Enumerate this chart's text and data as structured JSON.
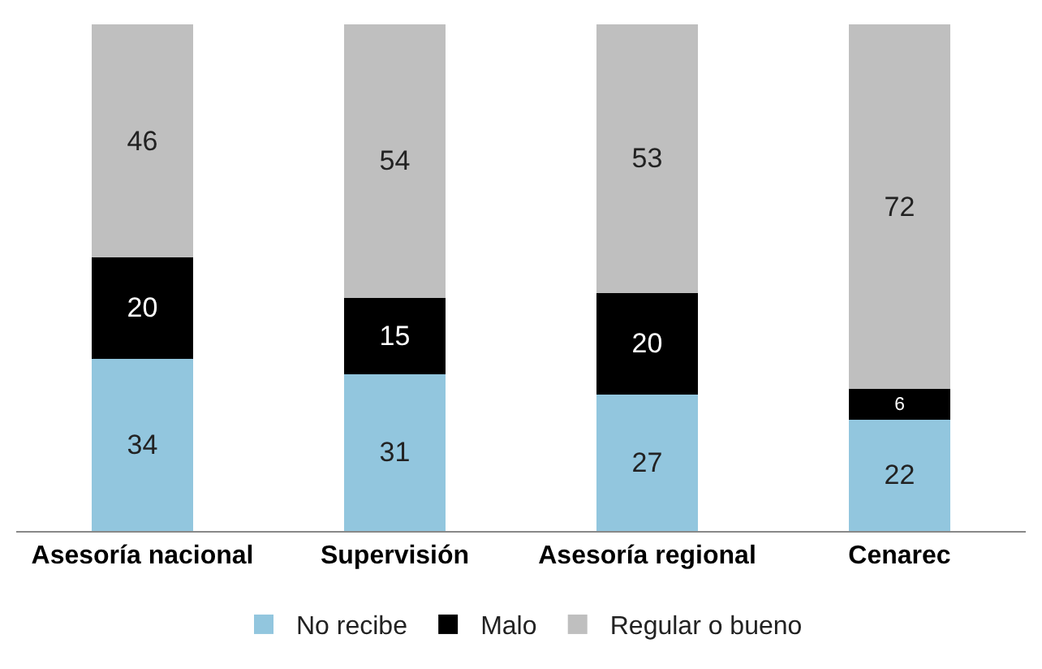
{
  "chart_data": {
    "type": "bar",
    "stacked": true,
    "data_labels": true,
    "legend": "bottom",
    "categories": [
      "Asesoría nacional",
      "Supervisión",
      "Asesoría regional",
      "Cenarec"
    ],
    "ylim": [
      0,
      100
    ],
    "tick_labels": "x",
    "series": [
      {
        "name": "No recibe",
        "color": "#92c6de",
        "values": [
          34,
          31,
          27,
          22
        ]
      },
      {
        "name": "Malo",
        "color": "#000000",
        "values": [
          20,
          15,
          20,
          6
        ]
      },
      {
        "name": "Regular o bueno",
        "color": "#bfbfbf",
        "values": [
          46,
          54,
          53,
          72
        ]
      }
    ]
  }
}
